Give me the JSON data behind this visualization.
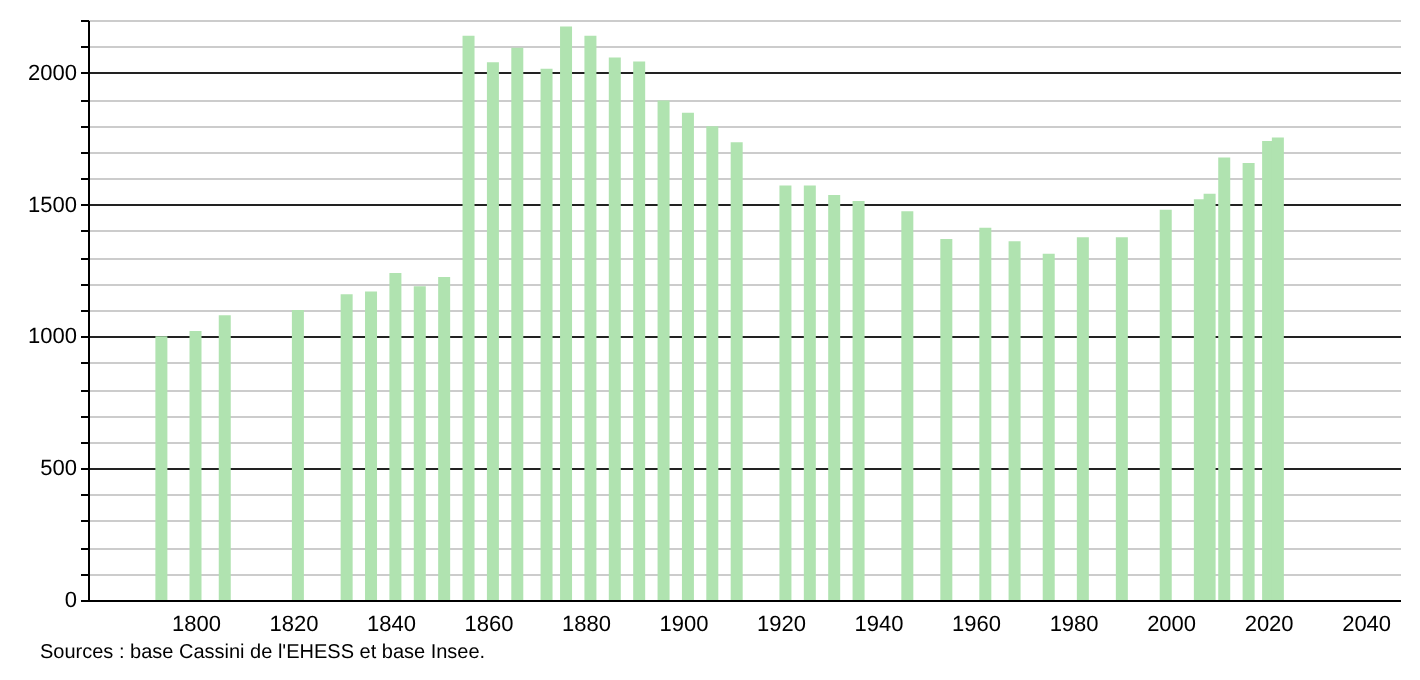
{
  "chart_data": {
    "type": "bar",
    "color": "#b0e3b0",
    "x": [
      1793,
      1800,
      1806,
      1821,
      1831,
      1836,
      1841,
      1846,
      1851,
      1856,
      1861,
      1866,
      1872,
      1876,
      1881,
      1886,
      1891,
      1896,
      1901,
      1906,
      1911,
      1921,
      1926,
      1931,
      1936,
      1946,
      1954,
      1962,
      1968,
      1975,
      1982,
      1990,
      1999,
      2006,
      2008,
      2011,
      2016,
      2020,
      2022
    ],
    "values": [
      1000,
      1020,
      1080,
      1100,
      1160,
      1170,
      1240,
      1190,
      1225,
      2140,
      2040,
      2095,
      2015,
      2175,
      2140,
      2058,
      2043,
      1895,
      1848,
      1797,
      1736,
      1572,
      1572,
      1536,
      1513,
      1475,
      1369,
      1412,
      1361,
      1313,
      1376,
      1376,
      1480,
      1520,
      1541,
      1678,
      1658,
      1741,
      1754
    ],
    "xlim": [
      1780,
      2045
    ],
    "xticks": [
      1800,
      1820,
      1840,
      1860,
      1880,
      1900,
      1920,
      1940,
      1960,
      1980,
      2000,
      2020,
      2040
    ],
    "ylim": [
      0,
      2200
    ],
    "yticks": [
      0,
      {
        "value": 100,
        "label": null
      },
      {
        "value": 200,
        "label": null
      },
      {
        "value": 300,
        "label": null
      },
      {
        "value": 400,
        "label": null
      },
      500,
      {
        "value": 600,
        "label": null
      },
      {
        "value": 700,
        "label": null
      },
      {
        "value": 800,
        "label": null
      },
      {
        "value": 900,
        "label": null
      },
      1000,
      {
        "value": 1100,
        "label": null
      },
      {
        "value": 1200,
        "label": null
      },
      {
        "value": 1300,
        "label": null
      },
      {
        "value": 1400,
        "label": null
      },
      1500,
      {
        "value": 1600,
        "label": null
      },
      {
        "value": 1700,
        "label": null
      },
      {
        "value": 1800,
        "label": null
      },
      {
        "value": 1900,
        "label": null
      },
      2000,
      {
        "value": 2100,
        "label": null
      },
      {
        "value": 2200,
        "label": null
      }
    ],
    "grid": "y",
    "annotations": [
      "Sources : base Cassini de l'EHESS et base Insee."
    ]
  }
}
